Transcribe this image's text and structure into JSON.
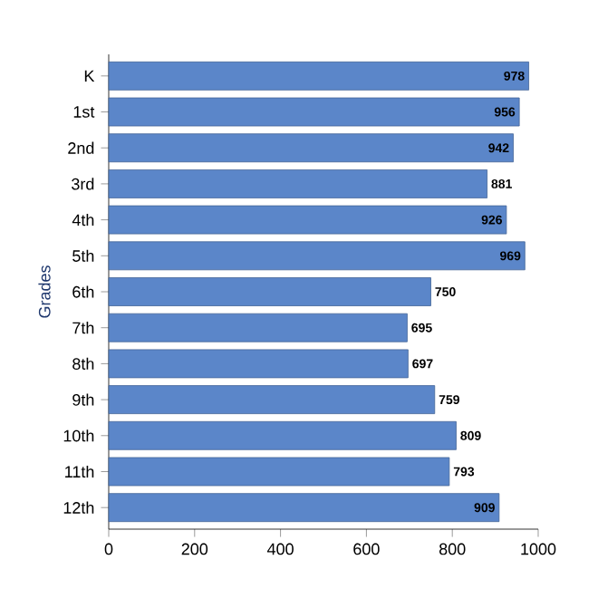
{
  "chart_data": {
    "type": "bar",
    "orientation": "horizontal",
    "ylabel": "Grades",
    "categories": [
      "K",
      "1st",
      "2nd",
      "3rd",
      "4th",
      "5th",
      "6th",
      "7th",
      "8th",
      "9th",
      "10th",
      "11th",
      "12th"
    ],
    "values": [
      978,
      956,
      942,
      881,
      926,
      969,
      750,
      695,
      697,
      759,
      809,
      793,
      909
    ],
    "color": "#5b86c9",
    "xlim": [
      0,
      1000
    ],
    "xticks": [
      0,
      200,
      400,
      600,
      800,
      1000
    ],
    "data_labels": true,
    "grid": false
  }
}
